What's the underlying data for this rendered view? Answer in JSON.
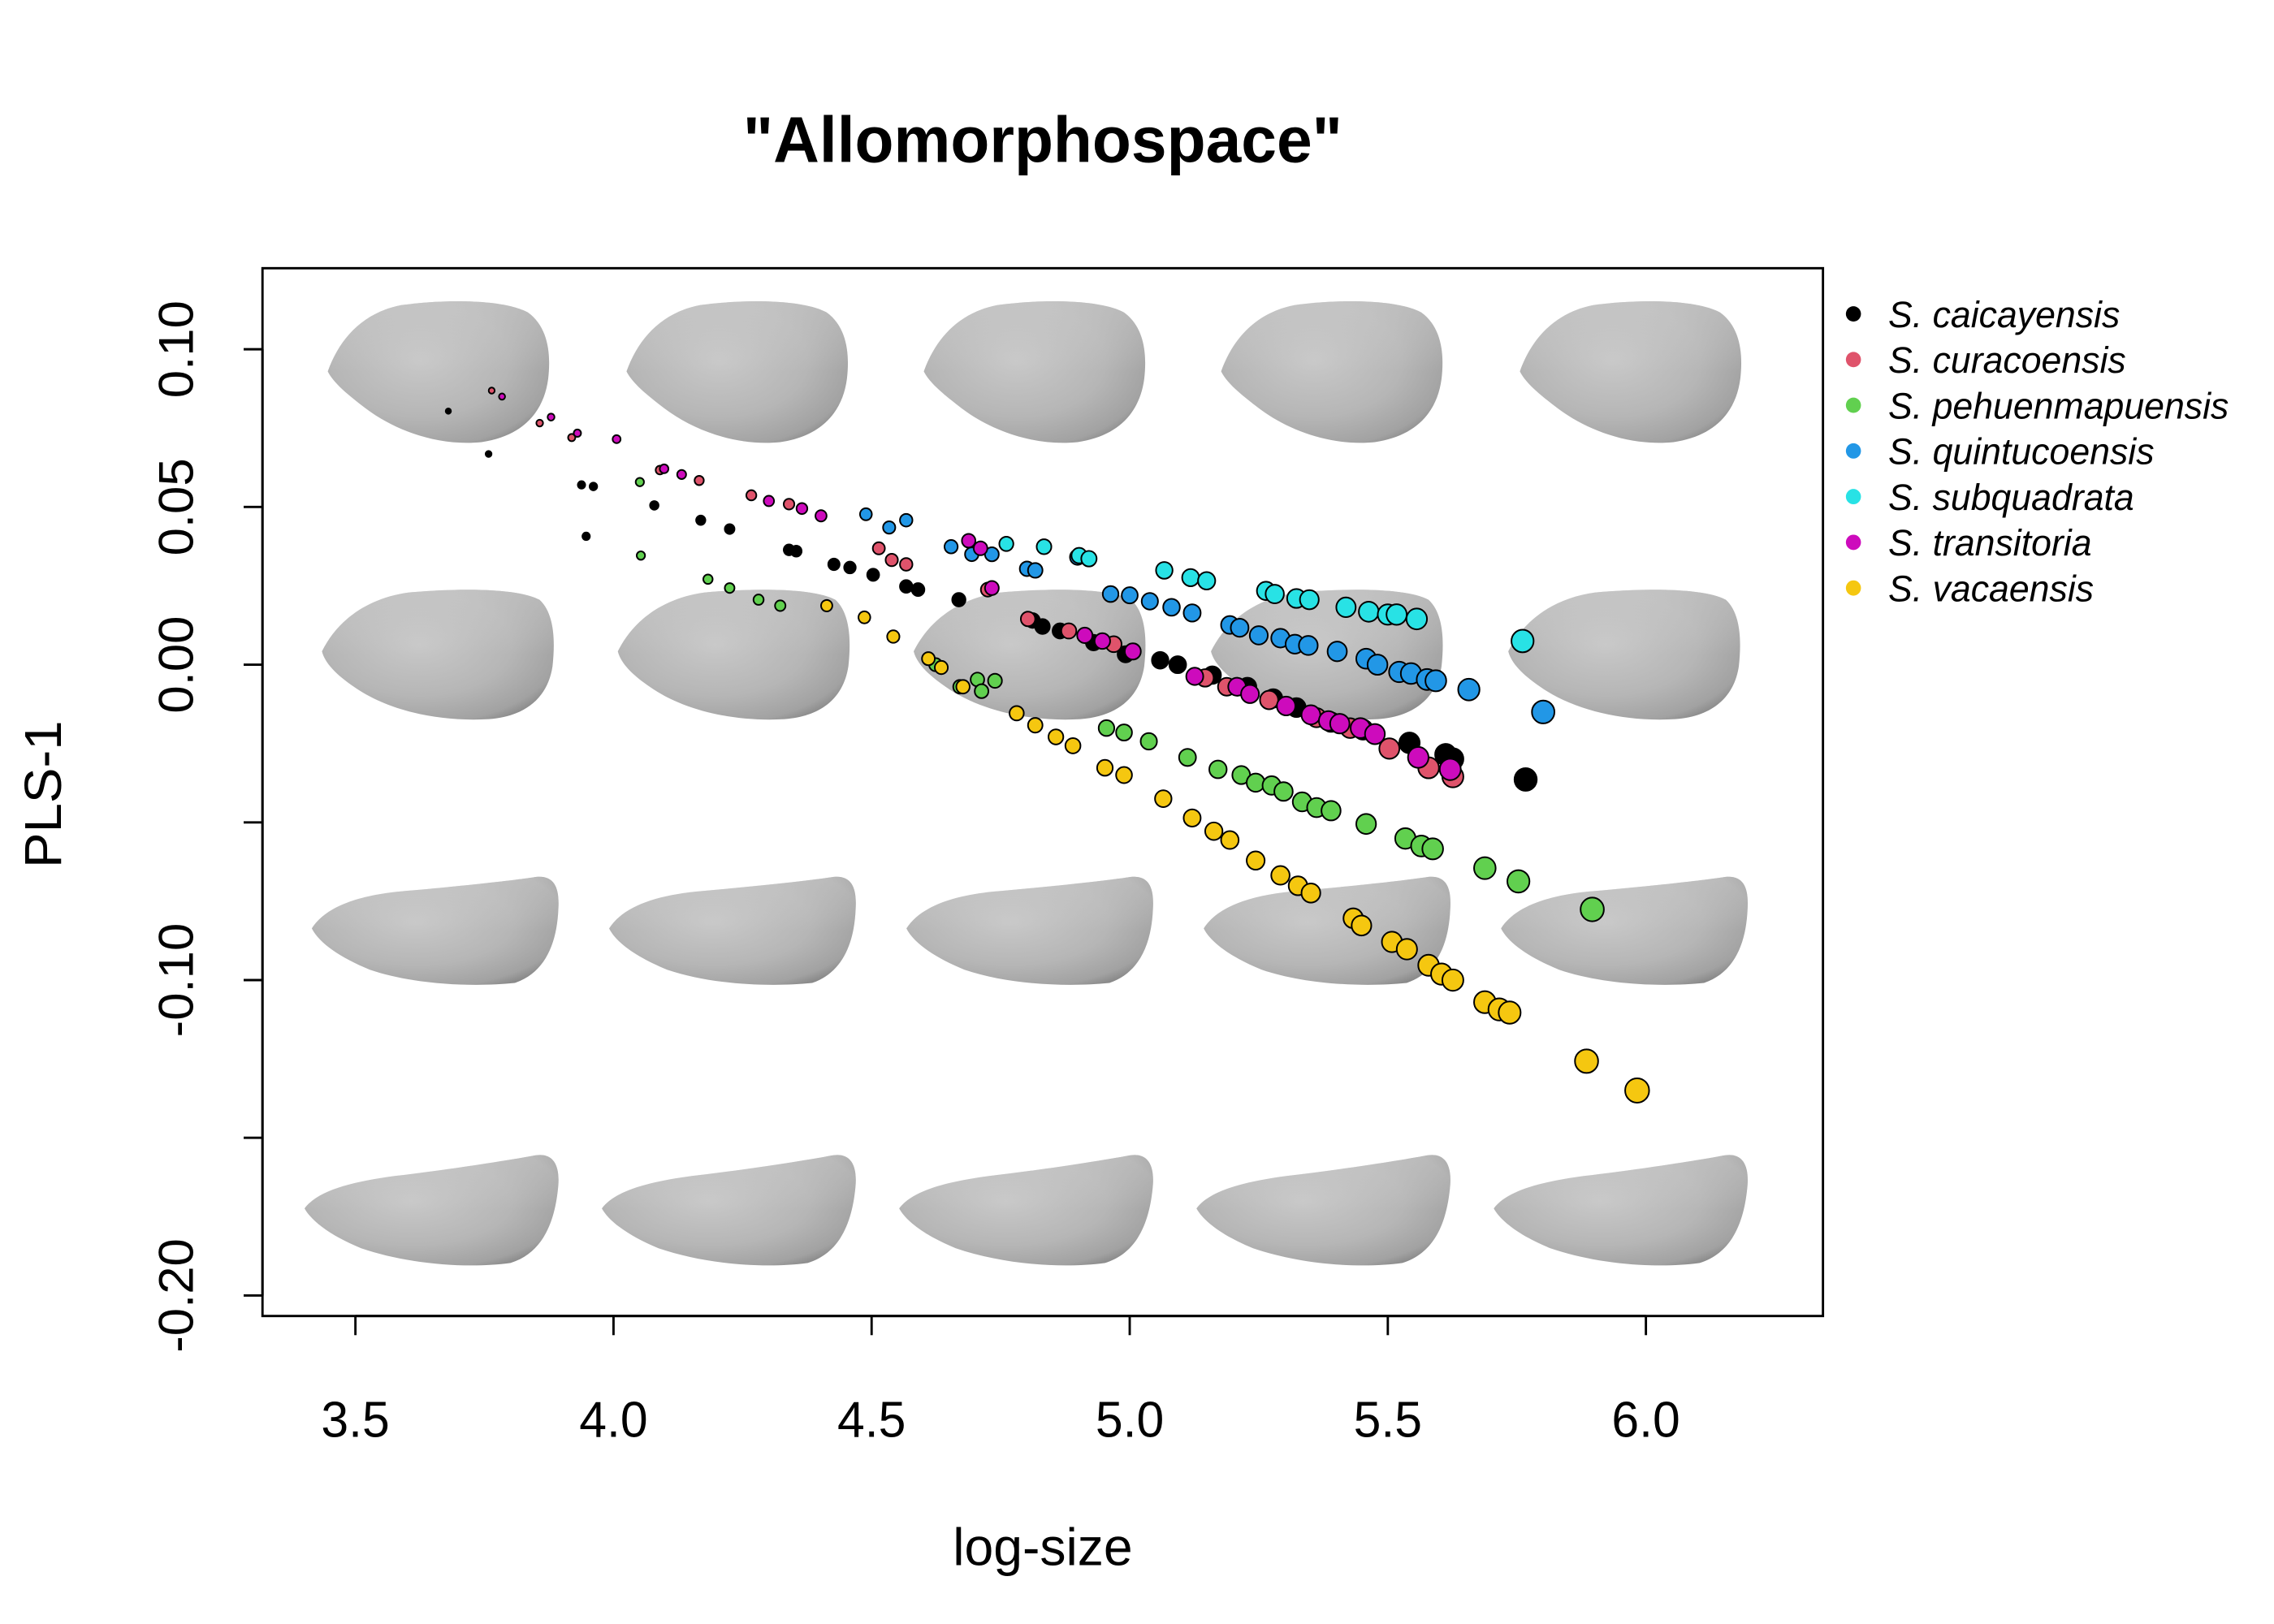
{
  "chart_data": {
    "type": "scatter",
    "title": "\"Allomorphospace\"",
    "xlabel": "log-size",
    "ylabel": "PLS-1",
    "xlim": [
      3.32,
      6.343
    ],
    "ylim": [
      -0.2065,
      0.1257
    ],
    "grid": false,
    "legend_position": "top-right, outside plot",
    "x_ticks": [
      {
        "value": 3.5,
        "label": "3.5"
      },
      {
        "value": 4.0,
        "label": "4.0"
      },
      {
        "value": 4.5,
        "label": "4.5"
      },
      {
        "value": 5.0,
        "label": "5.0"
      },
      {
        "value": 5.5,
        "label": "5.5"
      },
      {
        "value": 6.0,
        "label": "6.0"
      }
    ],
    "y_ticks": [
      {
        "value": 0.1,
        "label": "0.10"
      },
      {
        "value": 0.05,
        "label": "0.05"
      },
      {
        "value": 0.0,
        "label": "0.00"
      },
      {
        "value": -0.05,
        "label": ""
      },
      {
        "value": -0.1,
        "label": "-0.10"
      },
      {
        "value": -0.15,
        "label": ""
      },
      {
        "value": -0.2,
        "label": "-0.20"
      }
    ],
    "series": [
      {
        "name": "S. caicayensis",
        "color": "#000000",
        "x": [
          3.68,
          3.758,
          3.938,
          3.961,
          3.947,
          4.079,
          4.169,
          4.225,
          4.34,
          4.354,
          4.427,
          4.458,
          4.503,
          4.567,
          4.59,
          4.669,
          4.812,
          4.831,
          4.865,
          4.93,
          4.992,
          5.059,
          5.093,
          5.16,
          5.228,
          5.278,
          5.323,
          5.39,
          5.452,
          5.542,
          5.612,
          5.626,
          5.767
        ],
        "y": [
          0.0804,
          0.0668,
          0.057,
          0.0565,
          0.0407,
          0.0505,
          0.0458,
          0.043,
          0.0364,
          0.036,
          0.0318,
          0.0308,
          0.0285,
          0.0248,
          0.0238,
          0.0206,
          0.014,
          0.0121,
          0.0107,
          0.007,
          0.0033,
          0.0014,
          0.0,
          -0.0033,
          -0.007,
          -0.0107,
          -0.0136,
          -0.0182,
          -0.0206,
          -0.0248,
          -0.0285,
          -0.0299,
          -0.0364
        ]
      },
      {
        "name": "S. curacoensis",
        "color": "#DF536B",
        "x": [
          3.764,
          3.857,
          3.919,
          4.09,
          4.166,
          4.267,
          4.34,
          4.514,
          4.539,
          4.567,
          4.725,
          4.803,
          4.882,
          4.969,
          5.146,
          5.188,
          5.27,
          5.362,
          5.427,
          5.503,
          5.579,
          5.626
        ],
        "y": [
          0.0869,
          0.0766,
          0.072,
          0.0617,
          0.0584,
          0.0537,
          0.0509,
          0.0369,
          0.0332,
          0.0318,
          0.0238,
          0.0145,
          0.0107,
          0.0065,
          -0.0042,
          -0.007,
          -0.0112,
          -0.0168,
          -0.0201,
          -0.0266,
          -0.0327,
          -0.0355
        ]
      },
      {
        "name": "S. pehuenmapuensis",
        "color": "#61D04F",
        "x": [
          4.051,
          4.053,
          4.183,
          4.225,
          4.281,
          4.323,
          4.624,
          4.671,
          4.705,
          4.713,
          4.739,
          4.955,
          4.989,
          5.037,
          5.112,
          5.171,
          5.216,
          5.244,
          5.275,
          5.298,
          5.334,
          5.362,
          5.39,
          5.458,
          5.534,
          5.565,
          5.587,
          5.688,
          5.753,
          5.896
        ],
        "y": [
          0.0579,
          0.0346,
          0.0271,
          0.0243,
          0.0206,
          0.0187,
          0.0,
          -0.007,
          -0.0047,
          -0.0084,
          -0.0051,
          -0.0201,
          -0.0215,
          -0.0243,
          -0.0294,
          -0.0332,
          -0.035,
          -0.0374,
          -0.0383,
          -0.0402,
          -0.0435,
          -0.0453,
          -0.0463,
          -0.0505,
          -0.0551,
          -0.0575,
          -0.0584,
          -0.0645,
          -0.0687,
          -0.0776
        ]
      },
      {
        "name": "S. quintucoensis",
        "color": "#2297E6",
        "x": [
          4.489,
          4.534,
          4.567,
          4.654,
          4.694,
          4.733,
          4.801,
          4.817,
          4.899,
          4.963,
          5.0,
          5.039,
          5.081,
          5.121,
          5.194,
          5.213,
          5.25,
          5.292,
          5.32,
          5.346,
          5.402,
          5.458,
          5.48,
          5.522,
          5.545,
          5.576,
          5.593,
          5.657,
          5.801
        ],
        "y": [
          0.0477,
          0.0435,
          0.0458,
          0.0374,
          0.035,
          0.035,
          0.0304,
          0.0299,
          0.0341,
          0.0224,
          0.022,
          0.0201,
          0.0182,
          0.0164,
          0.0126,
          0.0117,
          0.0093,
          0.0084,
          0.0065,
          0.0061,
          0.0042,
          0.0019,
          0.0,
          -0.0023,
          -0.0028,
          -0.0047,
          -0.0051,
          -0.0079,
          -0.015
        ]
      },
      {
        "name": "S. subquadrata",
        "color": "#28E2E5",
        "x": [
          4.761,
          4.834,
          4.902,
          4.921,
          5.067,
          5.118,
          5.149,
          5.264,
          5.281,
          5.323,
          5.348,
          5.419,
          5.463,
          5.5,
          5.517,
          5.556,
          5.761
        ],
        "y": [
          0.0383,
          0.0374,
          0.0346,
          0.0336,
          0.0299,
          0.0276,
          0.0266,
          0.0234,
          0.0224,
          0.021,
          0.0206,
          0.0182,
          0.0168,
          0.0159,
          0.0159,
          0.0145,
          0.0075
        ]
      },
      {
        "name": "S. transitoria",
        "color": "#CD0BBC",
        "x": [
          3.784,
          3.879,
          3.93,
          4.006,
          4.098,
          4.132,
          4.301,
          4.365,
          4.402,
          4.688,
          4.711,
          4.733,
          4.913,
          4.947,
          5.006,
          5.126,
          5.208,
          5.233,
          5.303,
          5.351,
          5.385,
          5.407,
          5.447,
          5.475,
          5.559,
          5.621
        ],
        "y": [
          0.085,
          0.0785,
          0.0734,
          0.0715,
          0.0621,
          0.0603,
          0.0519,
          0.0495,
          0.0472,
          0.0393,
          0.0369,
          0.0243,
          0.0093,
          0.0075,
          0.0042,
          -0.0037,
          -0.007,
          -0.0093,
          -0.0131,
          -0.0159,
          -0.0178,
          -0.0187,
          -0.0201,
          -0.022,
          -0.0294,
          -0.0332
        ]
      },
      {
        "name": "S. vacaensis",
        "color": "#F5C710",
        "x": [
          4.413,
          4.486,
          4.542,
          4.61,
          4.635,
          4.677,
          4.781,
          4.817,
          4.857,
          4.89,
          4.952,
          4.989,
          5.065,
          5.121,
          5.163,
          5.194,
          5.244,
          5.292,
          5.326,
          5.351,
          5.433,
          5.449,
          5.508,
          5.537,
          5.579,
          5.604,
          5.626,
          5.688,
          5.716,
          5.736,
          5.885,
          5.983
        ],
        "y": [
          0.0187,
          0.015,
          0.0089,
          0.0019,
          -0.0009,
          -0.007,
          -0.0154,
          -0.0192,
          -0.0229,
          -0.0257,
          -0.0327,
          -0.035,
          -0.0425,
          -0.0486,
          -0.0528,
          -0.0556,
          -0.0621,
          -0.0668,
          -0.0701,
          -0.0724,
          -0.0804,
          -0.0827,
          -0.0879,
          -0.0902,
          -0.0953,
          -0.0981,
          -0.1,
          -0.107,
          -0.1093,
          -0.1103,
          -0.1257,
          -0.135
        ]
      }
    ]
  }
}
